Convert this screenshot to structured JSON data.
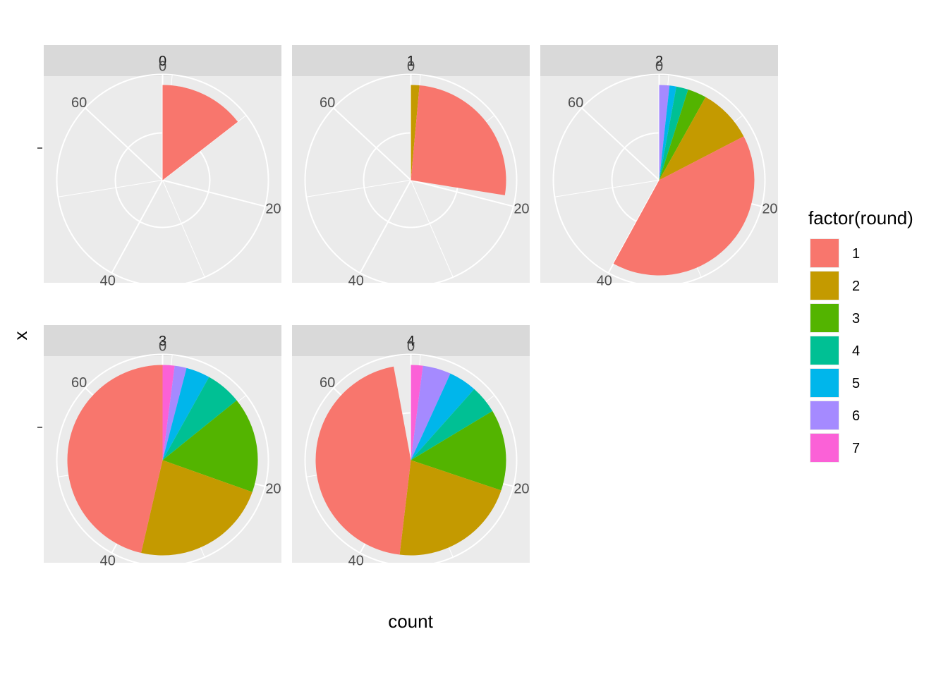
{
  "chart_data": {
    "type": "pie",
    "facet_variable": "",
    "xlabel": "count",
    "ylabel": "x",
    "theta_ticks": [
      "0",
      "20",
      "40",
      "60"
    ],
    "theta_max": 69,
    "legend": {
      "title": "factor(round)",
      "position": "right",
      "entries": [
        "1",
        "2",
        "3",
        "4",
        "5",
        "6",
        "7"
      ],
      "colors": [
        "#F8766D",
        "#C49A00",
        "#53B400",
        "#00C094",
        "#00B6EB",
        "#A58AFF",
        "#FB61D7"
      ]
    },
    "panels": [
      {
        "label": "0",
        "slices": [
          {
            "group": "1",
            "value": 10
          }
        ]
      },
      {
        "label": "1",
        "slices": [
          {
            "group": "2",
            "value": 1
          },
          {
            "group": "1",
            "value": 18
          }
        ]
      },
      {
        "label": "2",
        "slices": [
          {
            "group": "6",
            "value": 1.2
          },
          {
            "group": "5",
            "value": 0.8
          },
          {
            "group": "4",
            "value": 1.4
          },
          {
            "group": "3",
            "value": 2.2
          },
          {
            "group": "2",
            "value": 6.4
          },
          {
            "group": "1",
            "value": 28
          }
        ]
      },
      {
        "label": "3",
        "slices": [
          {
            "group": "7",
            "value": 1.4
          },
          {
            "group": "6",
            "value": 1.4
          },
          {
            "group": "5",
            "value": 2.8
          },
          {
            "group": "4",
            "value": 4.2
          },
          {
            "group": "3",
            "value": 11.2
          },
          {
            "group": "2",
            "value": 16
          },
          {
            "group": "1",
            "value": 32
          }
        ]
      },
      {
        "label": "4",
        "slices": [
          {
            "group": "7",
            "value": 1.4
          },
          {
            "group": "6",
            "value": 3.3
          },
          {
            "group": "5",
            "value": 3.3
          },
          {
            "group": "4",
            "value": 3.3
          },
          {
            "group": "3",
            "value": 9.5
          },
          {
            "group": "2",
            "value": 15
          },
          {
            "group": "1",
            "value": 31.2
          }
        ]
      }
    ]
  }
}
